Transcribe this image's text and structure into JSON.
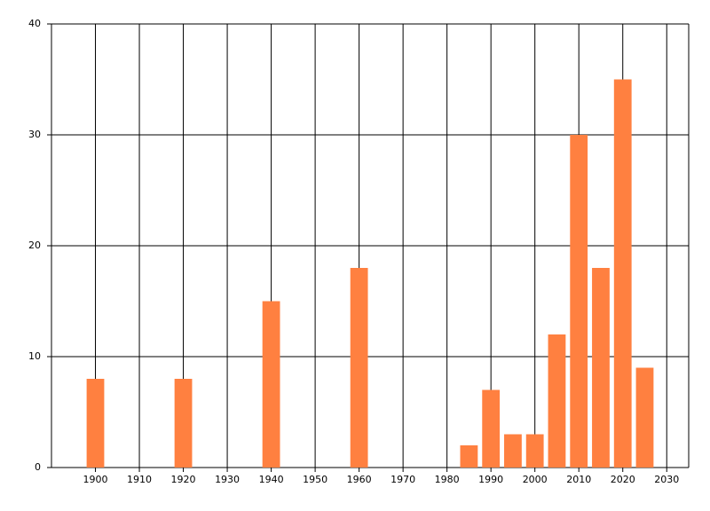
{
  "chart_data": {
    "type": "bar",
    "x": [
      1900,
      1920,
      1940,
      1960,
      1985,
      1990,
      1995,
      2000,
      2005,
      2010,
      2015,
      2020,
      2025
    ],
    "values": [
      8,
      8,
      15,
      18,
      2,
      7,
      3,
      3,
      12,
      30,
      18,
      35,
      9
    ],
    "color": "#ff8040",
    "xlim": [
      1890,
      2035
    ],
    "xticks": [
      1900,
      1910,
      1920,
      1930,
      1940,
      1950,
      1960,
      1970,
      1980,
      1990,
      2000,
      2010,
      2020,
      2030
    ],
    "ylim": [
      0,
      40
    ],
    "yticks": [
      0,
      10,
      20,
      30,
      40
    ],
    "grid": true
  }
}
